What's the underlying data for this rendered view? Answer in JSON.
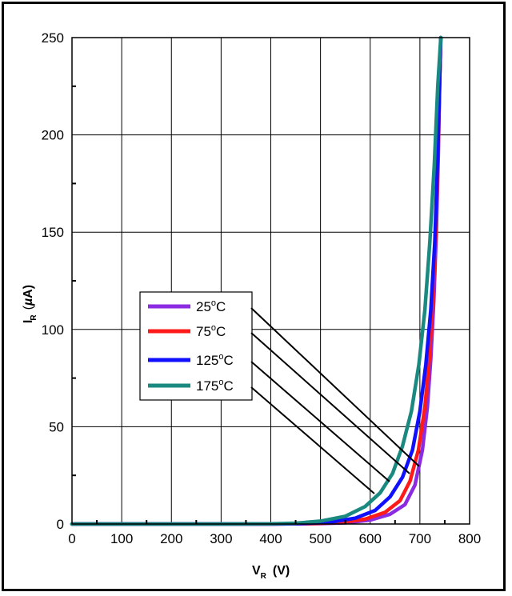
{
  "chart_data": {
    "type": "line",
    "title": "",
    "xlabel": {
      "main": "V",
      "sub": "R",
      "unit": "(V)"
    },
    "ylabel": {
      "main": "I",
      "sub": "R",
      "unit_prefix": "(",
      "unit_greek": "µ",
      "unit_rest": "A)"
    },
    "xlim": [
      0,
      800
    ],
    "ylim": [
      0,
      250
    ],
    "x_ticks": [
      0,
      100,
      200,
      300,
      400,
      500,
      600,
      700,
      800
    ],
    "y_ticks": [
      0,
      50,
      100,
      150,
      200,
      250
    ],
    "grid": true,
    "legend_position": "middle-left",
    "series": [
      {
        "name": "25°C",
        "label_main": "25",
        "color": "#8B2BE2",
        "x": [
          0,
          300,
          400,
          500,
          550,
          600,
          640,
          670,
          690,
          705,
          715,
          722,
          728,
          733,
          737,
          740,
          742
        ],
        "y": [
          0,
          0,
          0,
          0.2,
          0.6,
          2,
          5,
          10,
          20,
          38,
          60,
          85,
          115,
          150,
          190,
          230,
          250
        ]
      },
      {
        "name": "75°C",
        "label_main": "75",
        "color": "#FF1A1A",
        "x": [
          0,
          300,
          400,
          480,
          540,
          590,
          630,
          660,
          680,
          697,
          710,
          719,
          726,
          732,
          737,
          740,
          742
        ],
        "y": [
          0,
          0,
          0,
          0.2,
          0.8,
          2.5,
          6,
          12,
          22,
          38,
          60,
          85,
          115,
          150,
          195,
          230,
          250
        ]
      },
      {
        "name": "125°C",
        "label_main": "125",
        "color": "#1010FF",
        "x": [
          0,
          300,
          400,
          460,
          520,
          570,
          610,
          640,
          665,
          685,
          700,
          712,
          722,
          730,
          736,
          740,
          742
        ],
        "y": [
          0,
          0,
          0,
          0.2,
          1,
          3,
          7,
          14,
          24,
          38,
          58,
          82,
          110,
          145,
          190,
          230,
          250
        ]
      },
      {
        "name": "175°C",
        "label_main": "175",
        "color": "#1A8A80",
        "x": [
          0,
          300,
          400,
          450,
          500,
          550,
          590,
          620,
          645,
          665,
          683,
          698,
          710,
          720,
          729,
          736,
          742
        ],
        "y": [
          0,
          0,
          0.1,
          0.4,
          1.5,
          4,
          9,
          16,
          26,
          40,
          58,
          82,
          110,
          145,
          185,
          225,
          250
        ]
      }
    ]
  }
}
